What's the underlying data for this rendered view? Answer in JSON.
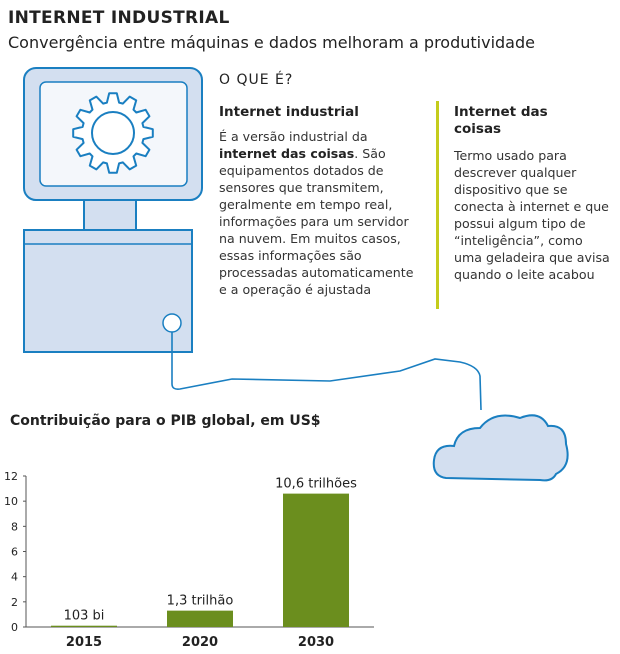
{
  "header": {
    "title": "INTERNET INDUSTRIAL",
    "subtitle": "Convergência entre máquinas e dados melhoram a produtividade"
  },
  "explainer": {
    "heading": "O QUE É?",
    "industrial": {
      "title": "Internet industrial",
      "body_prefix": "É a versão industrial da",
      "body_bold": "internet das coisas",
      "body_suffix": ". São equipamentos dotados de sensores que transmitem, geralmente em tempo real, informações para um servidor na nuvem. Em muitos casos, essas informações são processadas automaticamente e a operação é ajustada"
    },
    "iot": {
      "title": "Internet das coisas",
      "body": "Termo usado para descrever qualquer dispositivo que se conecta à internet e que possui algum tipo de “inteligência”, como uma geladeira que avisa quando o leite acabou"
    }
  },
  "illustration": {
    "icons": [
      "computer-icon",
      "gear-icon",
      "cloud-icon"
    ],
    "colors": {
      "outline": "#1a7fc1",
      "fill": "#d3dff0",
      "screen": "#f4f7fb"
    }
  },
  "chart_data": {
    "type": "bar",
    "title": "Contribuição para o PIB global, em US$",
    "categories": [
      "2015",
      "2020",
      "2030"
    ],
    "values": [
      0.103,
      1.3,
      10.6
    ],
    "value_labels": [
      "103 bi",
      "1,3 trilhão",
      "10,6 trilhões"
    ],
    "yticks": [
      "0",
      "2",
      "4",
      "6",
      "8",
      "10",
      "12"
    ],
    "ylim": [
      0,
      12
    ],
    "grid": false,
    "color": "#6b8e1e"
  }
}
